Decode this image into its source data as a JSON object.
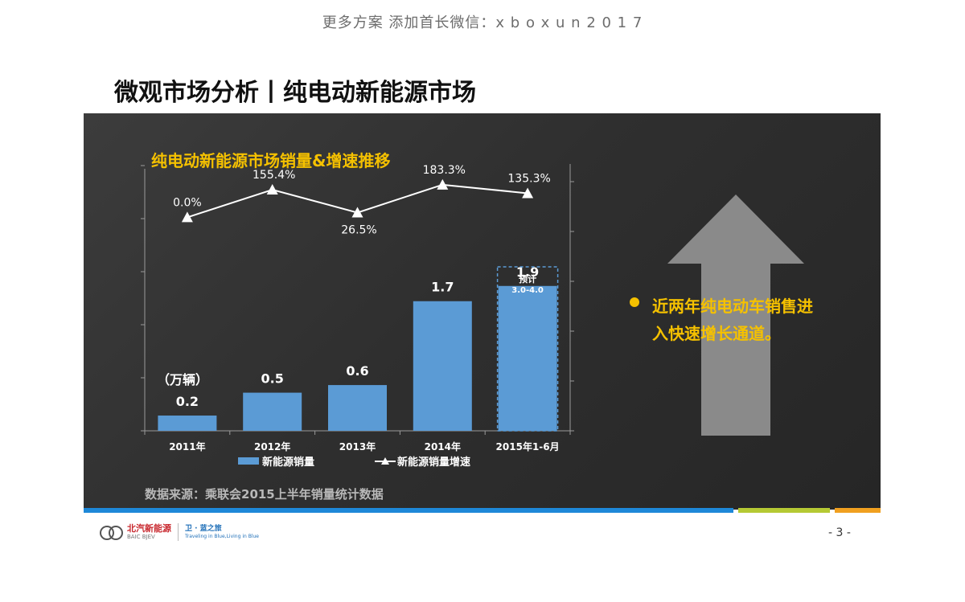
{
  "header_watermark": "更多方案 添加首长微信：x b o x  u n 2 0 1 7",
  "slide_title": "微观市场分析丨纯电动新能源市场",
  "chart_title": "纯电动新能源市场销量&增速推移",
  "bullet": [
    "近两年纯电动车销售进",
    "入快速增长通道。"
  ],
  "source": "数据来源：乘联会2015上半年销量统计数据",
  "page_number": "- 3 -",
  "logo": {
    "brand_cn": "北汽新能源",
    "brand_en": "BAIC BJEV",
    "slogan_cn": "卫 · 蓝之旅",
    "slogan_en": "Traveling in Blue,Living in Blue"
  },
  "colors": {
    "bar": "#5b9bd5",
    "line": "#ffffff",
    "accent": "#f5c100",
    "panel": "#333333",
    "arrow": "#8a8a8a",
    "footer_blue": "#1e88d8",
    "footer_green": "#b5c934",
    "footer_orange": "#f0a020"
  },
  "chart_data": {
    "type": "bar",
    "categories": [
      "2011年",
      "2012年",
      "2013年",
      "2014年",
      "2015年1-6月"
    ],
    "unit_label": "（万辆）",
    "series": [
      {
        "name": "新能源销量",
        "type": "bar",
        "values": [
          0.2,
          0.5,
          0.6,
          1.7,
          1.9
        ],
        "labels": [
          "0.2",
          "0.5",
          "0.6",
          "1.7",
          "1.9"
        ]
      },
      {
        "name": "新能源销量增速",
        "type": "line",
        "values": [
          0.0,
          155.4,
          26.5,
          183.3,
          135.3
        ],
        "labels": [
          "0.0%",
          "155.4%",
          "26.5%",
          "183.3%",
          "135.3%"
        ]
      }
    ],
    "forecast_box": {
      "category": "2015年1-6月",
      "label": "预计",
      "range": "3.0-4.0"
    },
    "bar_ylim": [
      0,
      3.5
    ],
    "line_ylim": [
      -1200,
      300
    ],
    "legend_position": "bottom",
    "grid": false
  }
}
